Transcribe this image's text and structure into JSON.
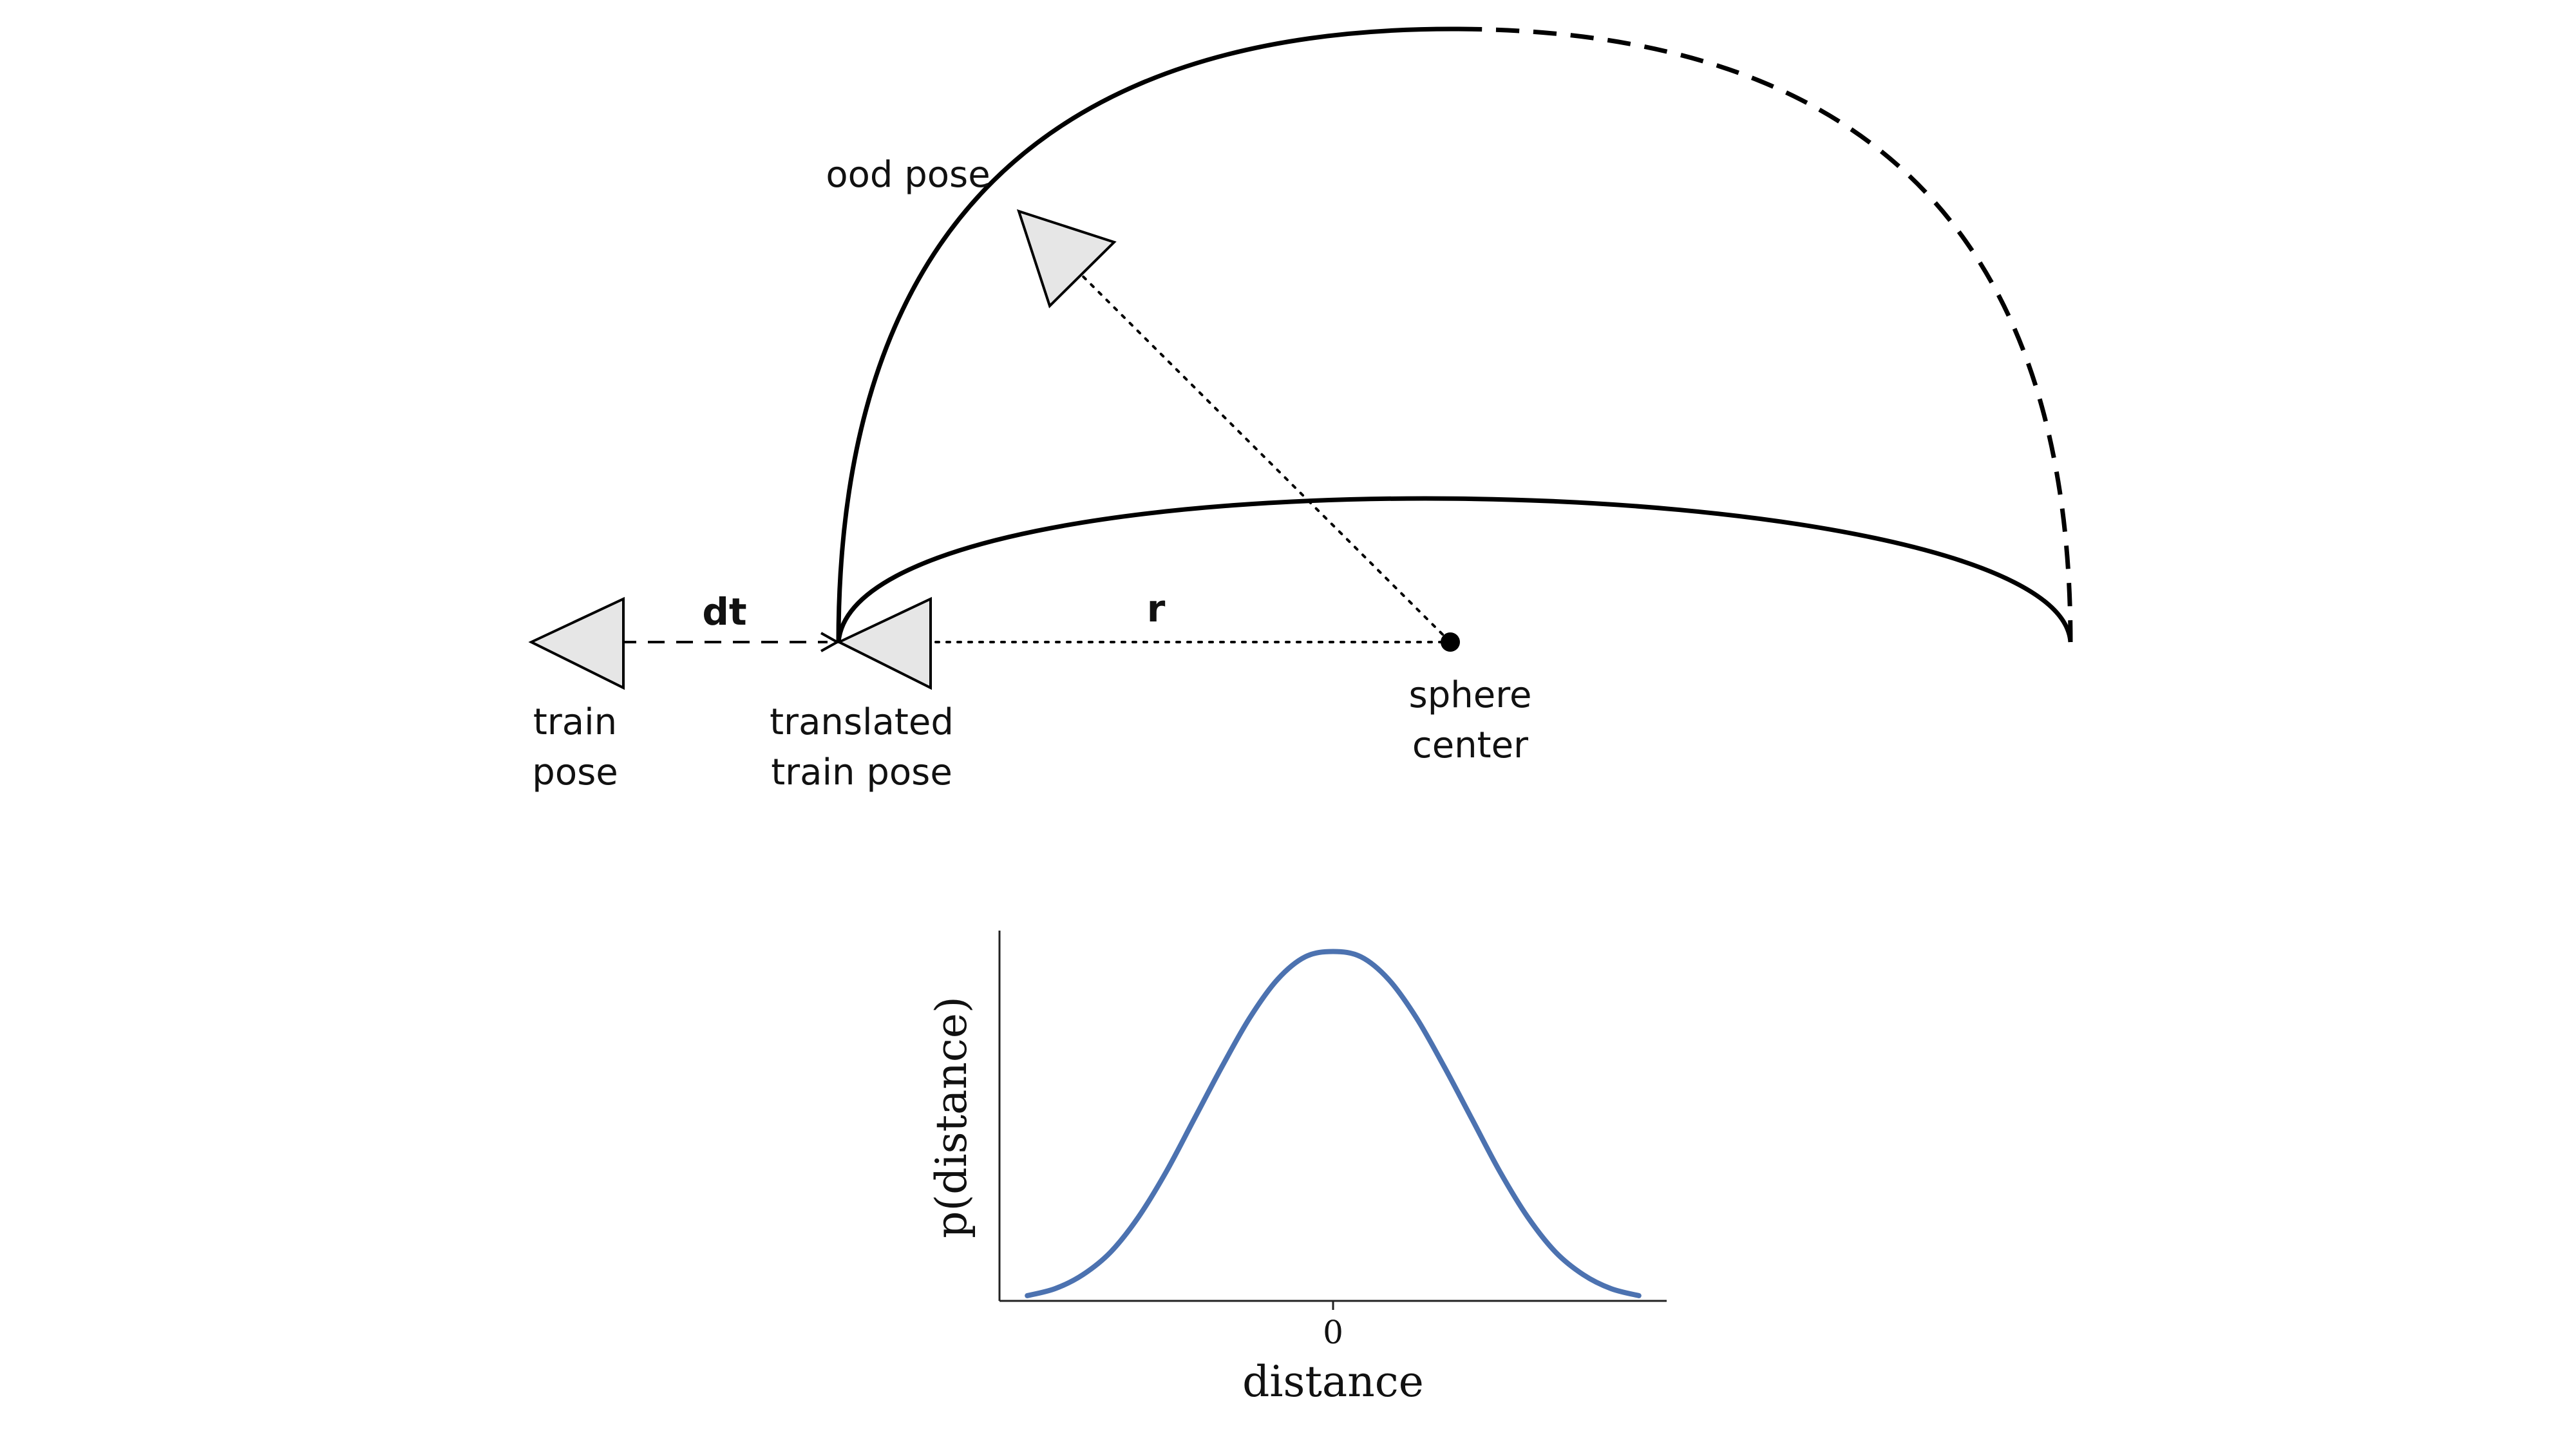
{
  "diagram": {
    "labels": {
      "ood_pose": "ood pose",
      "dt": "dt",
      "r": "r",
      "train_pose_line1": "train",
      "train_pose_line2": "pose",
      "translated_line1": "translated",
      "translated_line2": "train pose",
      "sphere_line1": "sphere",
      "sphere_line2": "center"
    },
    "colors": {
      "stroke": "#000000",
      "camera_fill": "#e6e6e6"
    }
  },
  "chart_data": {
    "type": "line",
    "title": "",
    "xlabel": "distance",
    "ylabel": "p(distance)",
    "x_tick_labels": [
      "0"
    ],
    "x_ticks": [
      0
    ],
    "xlim": [
      -2.4,
      2.4
    ],
    "ylim": [
      0,
      1.06
    ],
    "series": [
      {
        "color": "#4c72b0",
        "x": [
          -2.2,
          -2.0,
          -1.8,
          -1.6,
          -1.4,
          -1.2,
          -1.0,
          -0.8,
          -0.6,
          -0.4,
          -0.2,
          0.0,
          0.2,
          0.4,
          0.6,
          0.8,
          1.0,
          1.2,
          1.4,
          1.6,
          1.8,
          2.0,
          2.2
        ],
        "y": [
          0.015,
          0.035,
          0.075,
          0.14,
          0.24,
          0.37,
          0.52,
          0.67,
          0.81,
          0.92,
          0.985,
          1.0,
          0.985,
          0.92,
          0.81,
          0.67,
          0.52,
          0.37,
          0.24,
          0.14,
          0.075,
          0.035,
          0.015
        ]
      }
    ]
  }
}
